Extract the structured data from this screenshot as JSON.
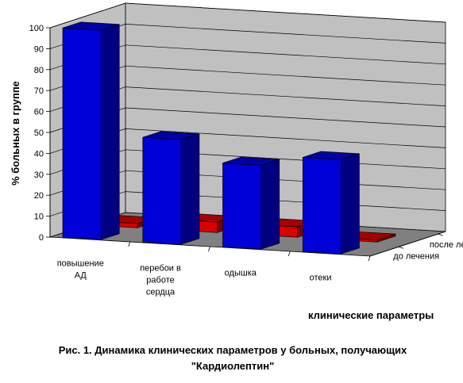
{
  "chart_data": {
    "type": "bar",
    "subtype": "3d-clustered-depth",
    "categories": [
      "повышение АД",
      "перебои в работе сердца",
      "одышка",
      "отеки"
    ],
    "series": [
      {
        "name": "до лечения",
        "values": [
          100,
          50,
          40,
          45
        ],
        "color": "#0000ff"
      },
      {
        "name": "после лечения",
        "values": [
          2,
          5,
          5,
          1
        ],
        "color": "#ff0000"
      }
    ],
    "ylim": [
      0,
      100
    ],
    "yticks": [
      "0",
      "10",
      "20",
      "30",
      "40",
      "50",
      "60",
      "70",
      "80",
      "90",
      "100"
    ],
    "ylabel": "% больных в группе",
    "xlabel": "клинические параметры",
    "grid": true
  },
  "caption": {
    "line1": "Рис. 1. Динамика клинических параметров у больных, получающих",
    "line2": "\"Кардиолептин\""
  },
  "colors": {
    "wall": "#c0c0c0",
    "floor": "#808080",
    "grid": "#000000"
  }
}
